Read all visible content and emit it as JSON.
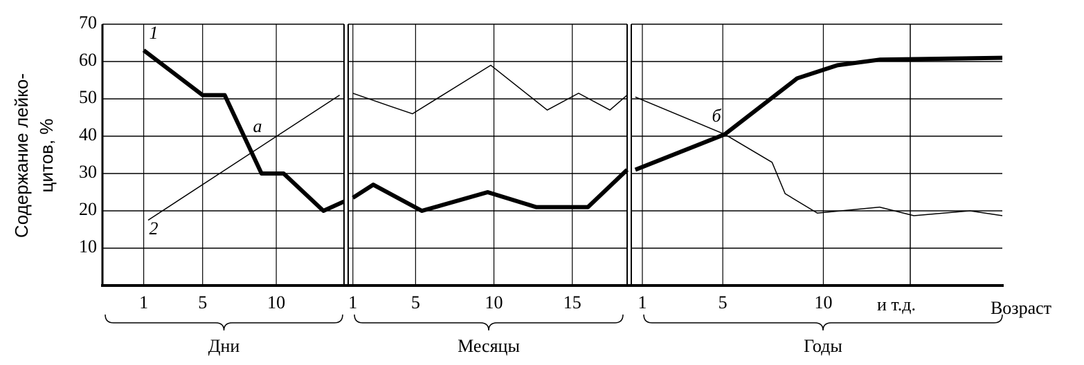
{
  "chart_data": [
    {
      "type": "line",
      "title": "Дни",
      "ylabel": [
        "Содержание  лейко-",
        "цитов, %"
      ],
      "annotations": [
        "а"
      ],
      "xlim": [
        -1.8,
        14.6
      ],
      "xticks": [
        1,
        5,
        10
      ],
      "ylim": [
        0,
        70
      ],
      "yticks": [
        10,
        20,
        30,
        40,
        50,
        60,
        70
      ],
      "grid": true,
      "series": [
        {
          "name": "1",
          "color": "#000000",
          "line_width": 6,
          "x": [
            1,
            5,
            6.5,
            9,
            10.5,
            13.2,
            14.6
          ],
          "values": [
            63,
            51,
            51,
            30,
            30,
            20,
            22.5
          ]
        },
        {
          "name": "2",
          "color": "#000000",
          "line_width": 1.5,
          "x": [
            1.3,
            14.3
          ],
          "values": [
            17.5,
            51
          ]
        }
      ]
    },
    {
      "type": "line",
      "title": "Месяцы",
      "xlim": [
        0.7,
        18.5
      ],
      "xticks": [
        1,
        5,
        10,
        15
      ],
      "ylim": [
        0,
        70
      ],
      "yticks": [
        10,
        20,
        30,
        40,
        50,
        60,
        70
      ],
      "grid": true,
      "series": [
        {
          "color": "#000000",
          "line_width": 6,
          "x": [
            1,
            2.3,
            5.4,
            9.6,
            12.7,
            16,
            18.5
          ],
          "values": [
            23.5,
            27,
            20,
            25,
            21,
            21,
            31
          ]
        },
        {
          "color": "#000000",
          "line_width": 1.5,
          "x": [
            1,
            3.4,
            4.8,
            9.8,
            13.4,
            15.4,
            17.4,
            18.5
          ],
          "values": [
            51.5,
            48,
            46,
            59,
            47,
            51.5,
            47,
            51
          ]
        }
      ]
    },
    {
      "type": "line",
      "title": "Годы",
      "annotations": [
        "б",
        "и т.д.",
        "Возраст"
      ],
      "xlim": [
        0.45,
        18.9
      ],
      "xticks": [
        1,
        5,
        10
      ],
      "ylim": [
        0,
        70
      ],
      "yticks": [
        10,
        20,
        30,
        40,
        50,
        60,
        70
      ],
      "grid": true,
      "series": [
        {
          "color": "#000000",
          "line_width": 6,
          "x": [
            0.65,
            5.1,
            8.7,
            10.7,
            12.8,
            18.9
          ],
          "values": [
            31,
            40.5,
            55.5,
            59,
            60.5,
            61
          ]
        },
        {
          "color": "#000000",
          "line_width": 1.5,
          "x": [
            0.65,
            5.1,
            7.45,
            8.1,
            9.7,
            12.8,
            14.5,
            17.3,
            18.9
          ],
          "values": [
            50.5,
            40.5,
            33,
            24.6,
            19.4,
            21,
            18.7,
            20,
            18.7
          ]
        }
      ]
    }
  ]
}
